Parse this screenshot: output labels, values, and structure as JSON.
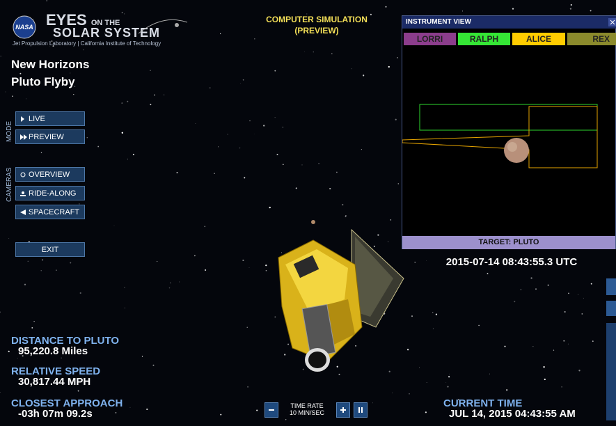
{
  "header": {
    "badge": "NASA",
    "title_big": "EYES",
    "title_small": "ON THE",
    "title_line2": "SOLAR SYSTEM",
    "subtitle": "Jet Propulsion Laboratory | California Institute of Technology"
  },
  "mission": {
    "line1": "New Horizons",
    "line2": "Pluto Flyby"
  },
  "mode": {
    "label": "MODE",
    "buttons": [
      "LIVE",
      "PREVIEW"
    ]
  },
  "cameras": {
    "label": "CAMERAS",
    "buttons": [
      "OVERVIEW",
      "RIDE-ALONG",
      "SPACECRAFT"
    ]
  },
  "exit": "EXIT",
  "banner": {
    "line1": "COMPUTER SIMULATION",
    "line2": "(PREVIEW)"
  },
  "instrument_view": {
    "title": "INSTRUMENT VIEW",
    "tabs": [
      "LORRI",
      "RALPH",
      "ALICE",
      "REX"
    ],
    "target": "TARGET: PLUTO"
  },
  "utc_time": "2015-07-14 08:43:55.3 UTC",
  "stats": [
    {
      "label": "DISTANCE TO PLUTO",
      "value": "95,220.8 Miles"
    },
    {
      "label": "RELATIVE SPEED",
      "value": "30,817.44 MPH"
    },
    {
      "label": "CLOSEST APPROACH",
      "value": "-03h 07m 09.2s"
    }
  ],
  "time_rate": {
    "label": "TIME RATE",
    "value": "10 MIN/SEC"
  },
  "current_time": {
    "label": "CURRENT TIME",
    "value": "JUL 14, 2015 04:43:55 AM"
  }
}
